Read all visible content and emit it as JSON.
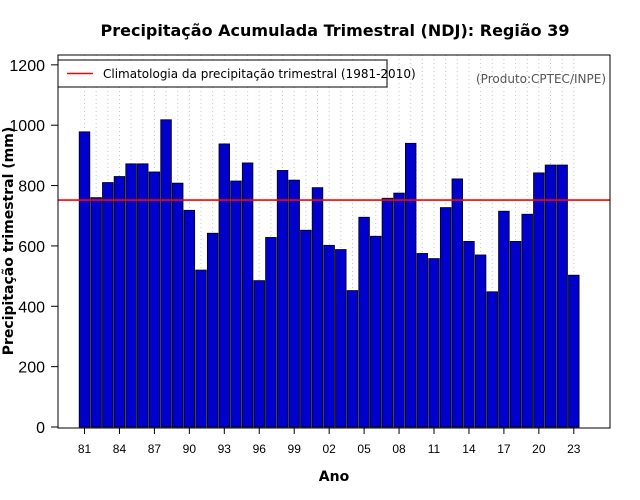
{
  "chart_data": {
    "type": "bar",
    "title": "Precipitação Acumulada Trimestral (NDJ): Região 39",
    "xlabel": "Ano",
    "ylabel": "Precipitação trimestral (mm)",
    "source_label": "(Produto:CPTEC/INPE)",
    "ylim": [
      0,
      1220
    ],
    "yticks": [
      0,
      200,
      400,
      600,
      800,
      1000,
      1200
    ],
    "categories": [
      "81",
      "82",
      "83",
      "84",
      "85",
      "86",
      "87",
      "88",
      "89",
      "90",
      "91",
      "92",
      "93",
      "94",
      "95",
      "96",
      "97",
      "98",
      "99",
      "00",
      "01",
      "02",
      "03",
      "04",
      "05",
      "06",
      "07",
      "08",
      "09",
      "10",
      "11",
      "12",
      "13",
      "14",
      "15",
      "16",
      "17",
      "18",
      "19",
      "20",
      "21",
      "22",
      "23"
    ],
    "xtick_labels": [
      "81",
      "84",
      "87",
      "90",
      "93",
      "96",
      "99",
      "02",
      "05",
      "08",
      "11",
      "14",
      "17",
      "20",
      "23"
    ],
    "values": [
      978,
      760,
      810,
      830,
      872,
      872,
      845,
      1018,
      808,
      718,
      520,
      642,
      938,
      815,
      875,
      485,
      628,
      850,
      818,
      652,
      793,
      602,
      588,
      452,
      695,
      632,
      758,
      775,
      940,
      575,
      558,
      727,
      822,
      615,
      570,
      448,
      715,
      615,
      705,
      842,
      868,
      868,
      503
    ],
    "reference_line": {
      "value": 752,
      "label": "Climatologia da precipitação trimestral (1981-2010)"
    },
    "grid": "vertical dotted",
    "legend_position": "top-left",
    "colors": {
      "bar_fill": "#0000cd",
      "bar_stroke": "#000000",
      "reference_line": "#ff0000",
      "grid": "#c8c8c8"
    }
  }
}
